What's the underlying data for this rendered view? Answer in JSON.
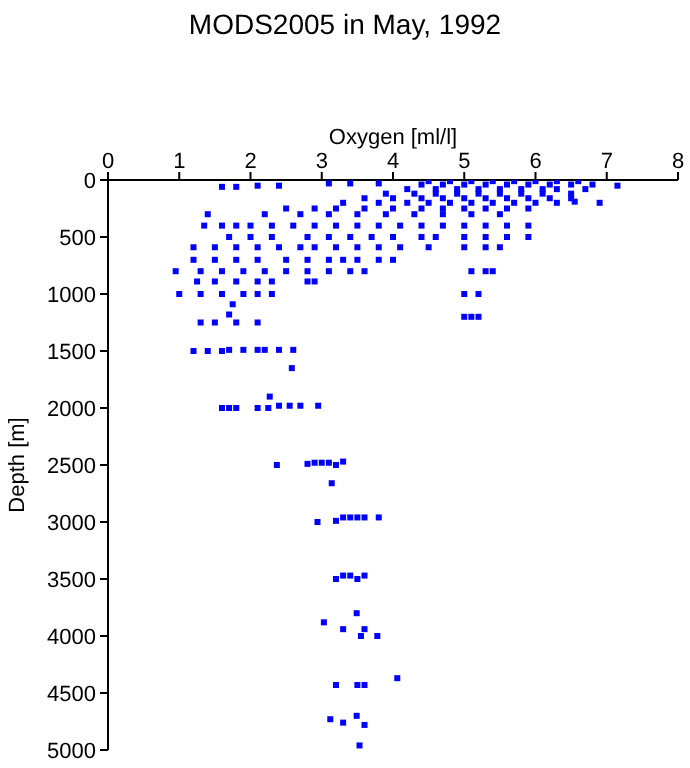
{
  "chart_data": {
    "type": "scatter",
    "title": "MODS2005 in May, 1992",
    "xlabel": "Oxygen [ml/l]",
    "ylabel": "Depth [m]",
    "xlim": [
      0,
      8
    ],
    "xticks": [
      0,
      1,
      2,
      3,
      4,
      5,
      6,
      7,
      8
    ],
    "ylim": [
      5000,
      0
    ],
    "yticks": [
      0,
      500,
      1000,
      1500,
      2000,
      2500,
      3000,
      3500,
      4000,
      4500,
      5000
    ],
    "grid": false,
    "legend": false,
    "marker": "square",
    "series": [
      {
        "color": "#0000ff",
        "x": [
          4.5,
          4.8,
          5.1,
          5.4,
          5.7,
          6.0,
          6.3,
          6.6
        ],
        "values": [
          10,
          10,
          10,
          10,
          10,
          10,
          10,
          10
        ]
      },
      {
        "color": "#0000ff",
        "x": [
          3.1,
          3.4,
          3.8,
          4.4,
          4.7,
          5.0,
          5.3,
          5.6,
          5.9,
          6.2,
          6.5,
          6.8
        ],
        "values": [
          30,
          30,
          30,
          40,
          40,
          40,
          40,
          40,
          40,
          40,
          40,
          40
        ]
      },
      {
        "color": "#0000ff",
        "x": [
          1.6,
          1.8,
          2.1,
          2.4,
          7.15
        ],
        "values": [
          60,
          60,
          50,
          50,
          50
        ]
      },
      {
        "color": "#0000ff",
        "x": [
          4.2,
          4.6,
          4.9,
          5.2,
          5.5,
          5.8,
          6.1,
          6.3,
          6.7
        ],
        "values": [
          80,
          80,
          80,
          80,
          80,
          80,
          80,
          80,
          80
        ]
      },
      {
        "color": "#0000ff",
        "x": [
          3.9,
          4.3,
          4.6,
          4.9,
          5.2,
          5.5,
          5.8,
          6.1,
          6.5
        ],
        "values": [
          120,
          120,
          120,
          120,
          120,
          120,
          120,
          120,
          120
        ]
      },
      {
        "color": "#0000ff",
        "x": [
          3.6,
          4.0,
          4.4,
          4.7,
          5.0,
          5.3,
          5.6,
          5.9,
          6.2,
          6.5
        ],
        "values": [
          160,
          160,
          160,
          160,
          160,
          160,
          160,
          160,
          160,
          160
        ]
      },
      {
        "color": "#0000ff",
        "x": [
          3.3,
          3.8,
          4.2,
          4.5,
          4.8,
          5.1,
          5.4,
          5.7,
          6.0,
          6.3,
          6.55,
          6.9
        ],
        "values": [
          200,
          200,
          200,
          200,
          200,
          200,
          200,
          200,
          200,
          200,
          190,
          200
        ]
      },
      {
        "color": "#0000ff",
        "x": [
          2.5,
          2.9,
          3.2,
          3.6,
          4.0,
          4.4,
          4.7,
          5.0,
          5.3,
          5.6,
          5.9
        ],
        "values": [
          250,
          250,
          250,
          250,
          250,
          250,
          250,
          250,
          250,
          250,
          250
        ]
      },
      {
        "color": "#0000ff",
        "x": [
          1.4,
          2.2,
          2.7,
          3.1,
          3.5,
          3.9,
          4.3,
          4.7,
          5.1,
          5.5
        ],
        "values": [
          300,
          300,
          300,
          300,
          300,
          300,
          300,
          300,
          300,
          300
        ]
      },
      {
        "color": "#0000ff",
        "x": [
          1.35,
          1.6,
          1.8,
          2.0,
          2.3,
          2.6,
          2.9,
          3.2,
          3.5,
          3.8,
          4.1,
          4.4,
          4.7,
          5.0,
          5.3,
          5.6,
          5.9
        ],
        "values": [
          400,
          400,
          400,
          400,
          400,
          400,
          400,
          400,
          400,
          400,
          400,
          400,
          400,
          400,
          400,
          400,
          400
        ]
      },
      {
        "color": "#0000ff",
        "x": [
          1.7,
          2.0,
          2.3,
          2.8,
          3.1,
          3.4,
          3.7,
          4.0,
          4.4,
          4.6,
          5.0,
          5.3,
          5.6,
          5.9
        ],
        "values": [
          500,
          500,
          500,
          500,
          500,
          500,
          500,
          500,
          500,
          500,
          500,
          500,
          500,
          500
        ]
      },
      {
        "color": "#0000ff",
        "x": [
          1.2,
          1.5,
          1.8,
          2.1,
          2.4,
          2.7,
          2.9,
          3.2,
          3.5,
          3.8,
          4.1,
          4.5,
          5.0,
          5.3,
          5.5
        ],
        "values": [
          590,
          590,
          590,
          590,
          590,
          590,
          590,
          590,
          590,
          590,
          590,
          590,
          590,
          590,
          590
        ]
      },
      {
        "color": "#0000ff",
        "x": [
          1.2,
          1.5,
          1.8,
          2.1,
          2.5,
          2.8,
          3.1,
          3.3,
          3.5,
          3.8,
          4.0
        ],
        "values": [
          700,
          700,
          700,
          700,
          700,
          700,
          700,
          700,
          700,
          700,
          700
        ]
      },
      {
        "color": "#0000ff",
        "x": [
          0.95,
          1.3,
          1.6,
          1.9,
          2.2,
          2.5,
          2.8,
          3.1,
          3.4,
          3.6,
          5.1,
          5.3,
          5.4
        ],
        "values": [
          800,
          800,
          800,
          800,
          800,
          800,
          800,
          800,
          800,
          800,
          800,
          800,
          800
        ]
      },
      {
        "color": "#0000ff",
        "x": [
          1.25,
          1.5,
          1.8,
          2.1,
          2.3,
          2.8,
          2.9
        ],
        "values": [
          890,
          890,
          890,
          890,
          890,
          890,
          890
        ]
      },
      {
        "color": "#0000ff",
        "x": [
          1.0,
          1.3,
          1.6,
          1.9,
          2.1,
          2.3,
          5.0,
          5.2
        ],
        "values": [
          1000,
          1000,
          1000,
          1000,
          1000,
          1000,
          1000,
          1000
        ]
      },
      {
        "color": "#0000ff",
        "x": [
          1.75,
          1.7,
          1.3,
          1.5,
          1.8,
          2.1,
          5.0,
          5.1,
          5.2
        ],
        "values": [
          1090,
          1180,
          1250,
          1250,
          1250,
          1250,
          1200,
          1200,
          1200
        ]
      },
      {
        "color": "#0000ff",
        "x": [
          1.2,
          1.4,
          1.6,
          1.7,
          1.9,
          2.1,
          2.2,
          2.4,
          2.6
        ],
        "values": [
          1500,
          1500,
          1500,
          1490,
          1490,
          1490,
          1490,
          1490,
          1490
        ]
      },
      {
        "color": "#0000ff",
        "x": [
          2.58,
          2.27,
          1.6,
          1.7,
          1.8,
          2.1,
          2.25,
          2.4,
          2.55,
          2.7,
          2.95
        ],
        "values": [
          1650,
          1900,
          2000,
          2000,
          2000,
          2000,
          2000,
          1980,
          1980,
          1980,
          1980
        ]
      },
      {
        "color": "#0000ff",
        "x": [
          2.37,
          2.8,
          2.9,
          3.0,
          3.1,
          3.2,
          3.3,
          3.14
        ],
        "values": [
          2500,
          2490,
          2480,
          2480,
          2480,
          2500,
          2470,
          2660
        ]
      },
      {
        "color": "#0000ff",
        "x": [
          2.94,
          3.2,
          3.3,
          3.4,
          3.5,
          3.6,
          3.8
        ],
        "values": [
          3000,
          2990,
          2960,
          2960,
          2960,
          2960,
          2960
        ]
      },
      {
        "color": "#0000ff",
        "x": [
          3.2,
          3.3,
          3.4,
          3.5,
          3.6,
          3.49
        ],
        "values": [
          3500,
          3470,
          3470,
          3500,
          3470,
          3800
        ]
      },
      {
        "color": "#0000ff",
        "x": [
          3.03,
          3.3,
          3.6,
          3.55,
          3.78,
          4.06
        ],
        "values": [
          3880,
          3940,
          3940,
          4000,
          4000,
          4370
        ]
      },
      {
        "color": "#0000ff",
        "x": [
          3.2,
          3.5,
          3.6,
          3.49,
          3.12,
          3.3,
          3.6,
          3.53
        ],
        "values": [
          4430,
          4430,
          4430,
          4700,
          4730,
          4760,
          4780,
          4960
        ]
      }
    ]
  }
}
